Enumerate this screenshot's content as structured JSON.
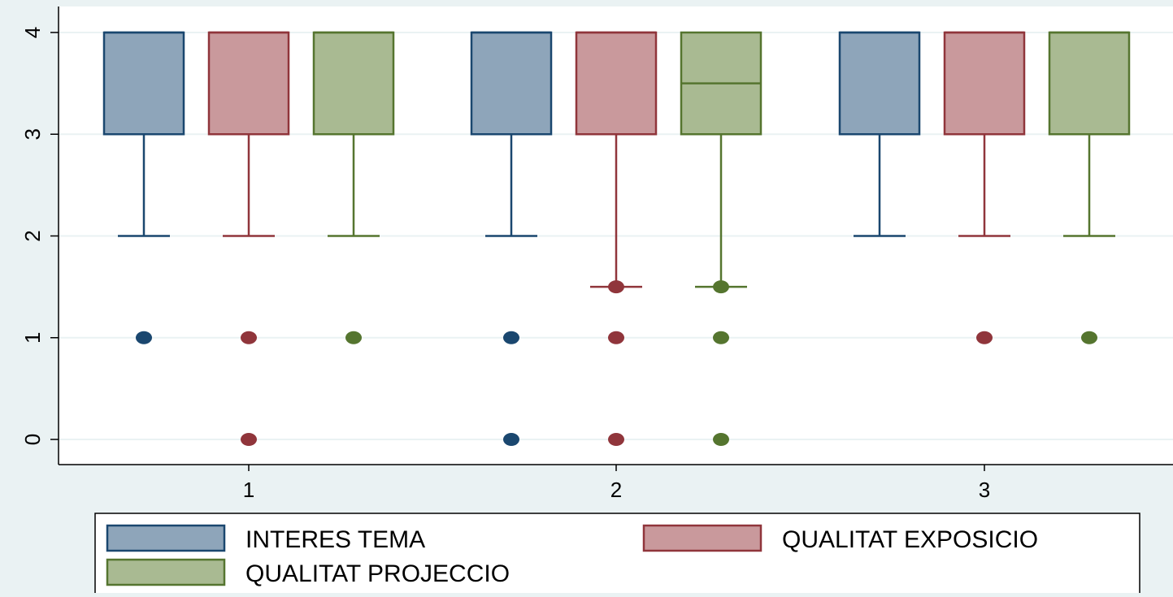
{
  "chart_data": {
    "type": "box",
    "title": "",
    "xlabel": "",
    "ylabel": "",
    "ylim": [
      -0.25,
      4.25
    ],
    "yticks": [
      0,
      1,
      2,
      3,
      4
    ],
    "ytick_labels": [
      "0",
      "1",
      "2",
      "3",
      "4"
    ],
    "categories": [
      "1",
      "2",
      "3"
    ],
    "grid": true,
    "legend_position": "bottom",
    "series": [
      {
        "name": "INTERES TEMA",
        "fill": "#8ea5ba",
        "stroke": "#1a476f",
        "boxes": [
          {
            "whisker_low": 2,
            "q1": 3,
            "median": 4,
            "q3": 4,
            "whisker_high": 4,
            "outliers": [
              1
            ]
          },
          {
            "whisker_low": 2,
            "q1": 3,
            "median": 4,
            "q3": 4,
            "whisker_high": 4,
            "outliers": [
              1,
              0
            ]
          },
          {
            "whisker_low": 2,
            "q1": 3,
            "median": 4,
            "q3": 4,
            "whisker_high": 4,
            "outliers": []
          }
        ]
      },
      {
        "name": "QUALITAT EXPOSICIO",
        "fill": "#c9999c",
        "stroke": "#90353b",
        "boxes": [
          {
            "whisker_low": 2,
            "q1": 3,
            "median": 4,
            "q3": 4,
            "whisker_high": 4,
            "outliers": [
              1,
              0
            ]
          },
          {
            "whisker_low": 1.5,
            "q1": 3,
            "median": 4,
            "q3": 4,
            "whisker_high": 4,
            "outliers": [
              1.5,
              1,
              0
            ]
          },
          {
            "whisker_low": 2,
            "q1": 3,
            "median": 4,
            "q3": 4,
            "whisker_high": 4,
            "outliers": [
              1
            ]
          }
        ]
      },
      {
        "name": "QUALITAT PROJECCIO",
        "fill": "#a9ba92",
        "stroke": "#55752f",
        "boxes": [
          {
            "whisker_low": 2,
            "q1": 3,
            "median": 4,
            "q3": 4,
            "whisker_high": 4,
            "outliers": [
              1
            ]
          },
          {
            "whisker_low": 1.5,
            "q1": 3,
            "median": 3.5,
            "q3": 4,
            "whisker_high": 4,
            "outliers": [
              1.5,
              1,
              0
            ]
          },
          {
            "whisker_low": 2,
            "q1": 3,
            "median": 4,
            "q3": 4,
            "whisker_high": 4,
            "outliers": [
              1
            ]
          }
        ]
      }
    ]
  }
}
